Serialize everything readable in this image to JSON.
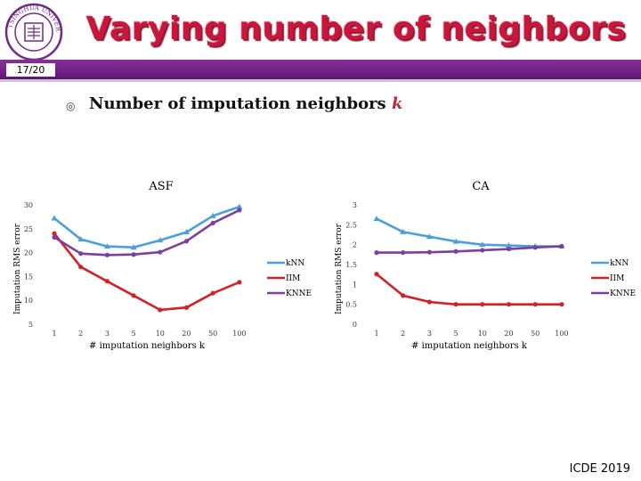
{
  "header": {
    "title": "Varying number of neighbors",
    "page_number": "17/20",
    "logo_text": "TSINGHUA UNIVERSITY"
  },
  "content": {
    "bullet_symbol": "◎",
    "subtitle_text": "Number of imputation neighbors ",
    "subtitle_var": "k"
  },
  "footer": {
    "text": "ICDE 2019"
  },
  "colors": {
    "kNN": "#4aa0dc",
    "IIM": "#d42127",
    "KNNE": "#7b3f9e",
    "title": "#c8173a",
    "bar": "#6d1f83"
  },
  "chart_data": [
    {
      "type": "line",
      "title": "ASF",
      "xlabel": "# imputation neighbors k",
      "ylabel": "Imputation RMS error",
      "categories": [
        "1",
        "2",
        "3",
        "5",
        "10",
        "20",
        "50",
        "100"
      ],
      "yticks": [
        "5",
        "10",
        "15",
        "20",
        "25",
        "30"
      ],
      "ylim": [
        5,
        30
      ],
      "legend_position": "right",
      "series": [
        {
          "name": "kNN",
          "values": [
            27.2,
            22.8,
            21.3,
            21.1,
            22.6,
            24.3,
            27.7,
            29.6
          ]
        },
        {
          "name": "IIM",
          "values": [
            24.0,
            17.0,
            14.0,
            11.0,
            8.0,
            8.5,
            11.5,
            13.8
          ]
        },
        {
          "name": "KNNE",
          "values": [
            23.2,
            19.8,
            19.5,
            19.6,
            20.1,
            22.4,
            26.2,
            28.9
          ]
        }
      ]
    },
    {
      "type": "line",
      "title": "CA",
      "xlabel": "# imputation neighbors k",
      "ylabel": "Imputation RMS error",
      "categories": [
        "1",
        "2",
        "3",
        "5",
        "10",
        "20",
        "50",
        "100"
      ],
      "yticks": [
        "0",
        "0.5",
        "1",
        "1.5",
        "2",
        "2.5",
        "3"
      ],
      "ylim": [
        0,
        3
      ],
      "legend_position": "right",
      "series": [
        {
          "name": "kNN",
          "values": [
            2.65,
            2.32,
            2.2,
            2.08,
            2.0,
            1.98,
            1.96,
            1.96
          ]
        },
        {
          "name": "IIM",
          "values": [
            1.26,
            0.72,
            0.56,
            0.5,
            0.5,
            0.5,
            0.5,
            0.5
          ]
        },
        {
          "name": "KNNE",
          "values": [
            1.8,
            1.8,
            1.81,
            1.83,
            1.86,
            1.89,
            1.93,
            1.96
          ]
        }
      ]
    }
  ]
}
